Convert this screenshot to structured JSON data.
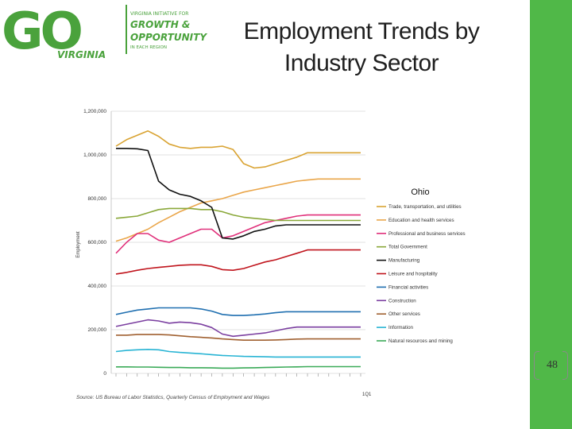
{
  "logo": {
    "main": "GO",
    "state": "VIRGINIA",
    "line1": "VIRGINIA INITIATIVE FOR",
    "line2": "GROWTH &",
    "line3": "OPPORTUNITY",
    "line4": "IN EACH REGION"
  },
  "slide": {
    "title_line1": "Employment Trends by",
    "title_line2": "Industry Sector",
    "page_number": "48",
    "accent_color": "#50b848"
  },
  "chart_data": {
    "type": "line",
    "title": "Ohio",
    "ylabel": "Employment",
    "ylim": [
      0,
      1200000
    ],
    "y_ticks": [
      "0",
      "200,000",
      "400,000",
      "600,000",
      "800,000",
      "1,000,000",
      "1,200,000"
    ],
    "x_axis_label": "1Q1",
    "x_tick_note": "quarterly, 1990-2013",
    "source": "Source: US Bureau of Labor Statistics, Quarterly Census of Employment and Wages",
    "n_points": 24,
    "series": [
      {
        "name": "Trade, transportation, and utilities",
        "color": "#d9a332",
        "values": [
          1040000,
          1070000,
          1090000,
          1110000,
          1085000,
          1050000,
          1035000,
          1030000,
          1035000,
          1035000,
          1040000,
          1025000,
          960000,
          940000,
          945000,
          960000,
          975000,
          990000,
          1010000,
          1010000,
          1010000,
          1010000,
          1010000,
          1010000
        ]
      },
      {
        "name": "Education and health services",
        "color": "#eaa64a",
        "values": [
          605000,
          620000,
          640000,
          660000,
          690000,
          715000,
          740000,
          760000,
          780000,
          790000,
          800000,
          815000,
          830000,
          840000,
          850000,
          860000,
          870000,
          880000,
          885000,
          890000,
          890000,
          890000,
          890000,
          890000
        ]
      },
      {
        "name": "Professional and business services",
        "color": "#e0307a",
        "values": [
          550000,
          600000,
          640000,
          640000,
          610000,
          600000,
          620000,
          640000,
          660000,
          660000,
          620000,
          630000,
          650000,
          670000,
          690000,
          700000,
          710000,
          720000,
          725000,
          725000,
          725000,
          725000,
          725000,
          725000
        ]
      },
      {
        "name": "Total Government",
        "color": "#8aa83a",
        "values": [
          710000,
          715000,
          720000,
          735000,
          750000,
          755000,
          755000,
          755000,
          750000,
          750000,
          740000,
          725000,
          715000,
          710000,
          705000,
          700000,
          700000,
          700000,
          700000,
          700000,
          700000,
          700000,
          700000,
          700000
        ]
      },
      {
        "name": "Manufacturing",
        "color": "#111111",
        "values": [
          1030000,
          1030000,
          1028000,
          1020000,
          880000,
          840000,
          820000,
          810000,
          790000,
          760000,
          620000,
          615000,
          630000,
          650000,
          660000,
          675000,
          680000,
          680000,
          680000,
          680000,
          680000,
          680000,
          680000,
          680000
        ]
      },
      {
        "name": "Leisure and hospitality",
        "color": "#c0141c",
        "values": [
          455000,
          462000,
          472000,
          480000,
          485000,
          490000,
          495000,
          497000,
          497000,
          490000,
          475000,
          472000,
          480000,
          495000,
          510000,
          520000,
          535000,
          550000,
          565000,
          565000,
          565000,
          565000,
          565000,
          565000
        ]
      },
      {
        "name": "Financial activities",
        "color": "#1f6fb0",
        "values": [
          270000,
          280000,
          290000,
          295000,
          300000,
          300000,
          300000,
          300000,
          295000,
          285000,
          270000,
          265000,
          265000,
          268000,
          272000,
          278000,
          282000,
          282000,
          282000,
          282000,
          282000,
          282000,
          282000,
          282000
        ]
      },
      {
        "name": "Construction",
        "color": "#7b3fa0",
        "values": [
          215000,
          225000,
          235000,
          245000,
          240000,
          230000,
          235000,
          232000,
          225000,
          210000,
          180000,
          170000,
          175000,
          180000,
          185000,
          195000,
          205000,
          212000,
          212000,
          212000,
          212000,
          212000,
          212000,
          212000
        ]
      },
      {
        "name": "Other services",
        "color": "#a06030",
        "values": [
          175000,
          175000,
          178000,
          178000,
          178000,
          176000,
          172000,
          168000,
          165000,
          162000,
          158000,
          155000,
          152000,
          152000,
          152000,
          153000,
          155000,
          157000,
          158000,
          158000,
          158000,
          158000,
          158000,
          158000
        ]
      },
      {
        "name": "Information",
        "color": "#28b4d4",
        "values": [
          100000,
          105000,
          108000,
          110000,
          108000,
          100000,
          96000,
          93000,
          90000,
          86000,
          82000,
          80000,
          78000,
          77000,
          76000,
          75000,
          75000,
          75000,
          75000,
          75000,
          75000,
          75000,
          75000,
          75000
        ]
      },
      {
        "name": "Natural resources and mining",
        "color": "#3aaa58",
        "values": [
          30000,
          30000,
          29000,
          29000,
          28000,
          27000,
          27000,
          26000,
          26000,
          25000,
          24000,
          24000,
          25000,
          26000,
          27000,
          28000,
          29000,
          30000,
          31000,
          31000,
          31000,
          31000,
          31000,
          31000
        ]
      }
    ]
  }
}
